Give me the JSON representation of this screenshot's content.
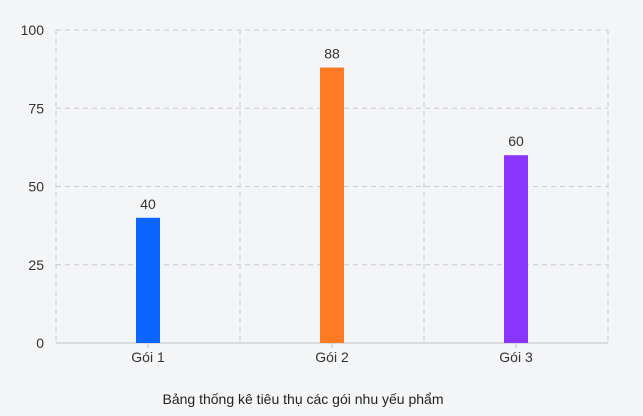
{
  "chart_data": {
    "type": "bar",
    "categories": [
      "Gói 1",
      "Gói 2",
      "Gói 3"
    ],
    "values": [
      40,
      88,
      60
    ],
    "bar_colors": [
      "#0b66ff",
      "#ff7a23",
      "#8a35ff"
    ],
    "data_labels": [
      "40",
      "88",
      "60"
    ],
    "ylim": [
      0,
      100
    ],
    "y_ticks": [
      0,
      25,
      50,
      75,
      100
    ],
    "y_tick_labels": [
      "0",
      "25",
      "50",
      "75",
      "100"
    ],
    "grid": true,
    "grid_style": "dashed",
    "xlabel": "Bảng thống kê tiêu thụ các gói nhu yếu phẩm",
    "ylabel": ""
  }
}
